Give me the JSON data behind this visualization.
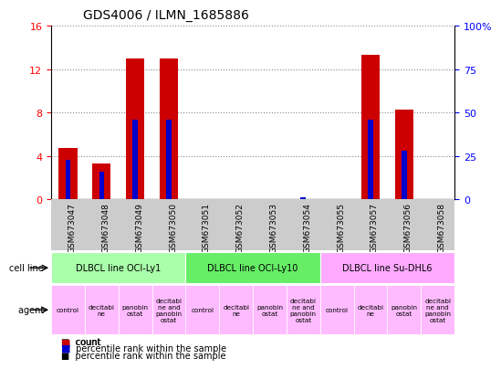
{
  "title": "GDS4006 / ILMN_1685886",
  "samples": [
    "GSM673047",
    "GSM673048",
    "GSM673049",
    "GSM673050",
    "GSM673051",
    "GSM673052",
    "GSM673053",
    "GSM673054",
    "GSM673055",
    "GSM673057",
    "GSM673056",
    "GSM673058"
  ],
  "count_values": [
    4.7,
    3.3,
    13.0,
    13.0,
    0.0,
    0.0,
    0.0,
    0.0,
    0.0,
    13.3,
    8.3,
    0.0
  ],
  "percentile_values": [
    23,
    16,
    46,
    46,
    0,
    0,
    0,
    1,
    0,
    46,
    28,
    0
  ],
  "ylim_left": [
    0,
    16
  ],
  "ylim_right": [
    0,
    100
  ],
  "yticks_left": [
    0,
    4,
    8,
    12,
    16
  ],
  "yticks_right": [
    0,
    25,
    50,
    75,
    100
  ],
  "bar_color": "#cc0000",
  "percentile_color": "#0000cc",
  "cell_lines": [
    {
      "label": "DLBCL line OCI-Ly1",
      "start": 0,
      "end": 4,
      "color": "#aaffaa"
    },
    {
      "label": "DLBCL line OCI-Ly10",
      "start": 4,
      "end": 8,
      "color": "#66ee66"
    },
    {
      "label": "DLBCL line Su-DHL6",
      "start": 8,
      "end": 12,
      "color": "#ffaaff"
    }
  ],
  "agents": [
    "control",
    "decitabi\nne",
    "panobin\nostat",
    "decitabi\nne and\npanobin\nostat",
    "control",
    "decitabi\nne",
    "panobin\nostat",
    "decitabi\nne and\npanobin\nostat",
    "control",
    "decitabi\nne",
    "panobin\nostat",
    "decitabi\nne and\npanobin\nostat"
  ],
  "agent_color": "#ffbbff",
  "tick_bg_color": "#cccccc",
  "title_fontsize": 10,
  "bar_width": 0.55
}
